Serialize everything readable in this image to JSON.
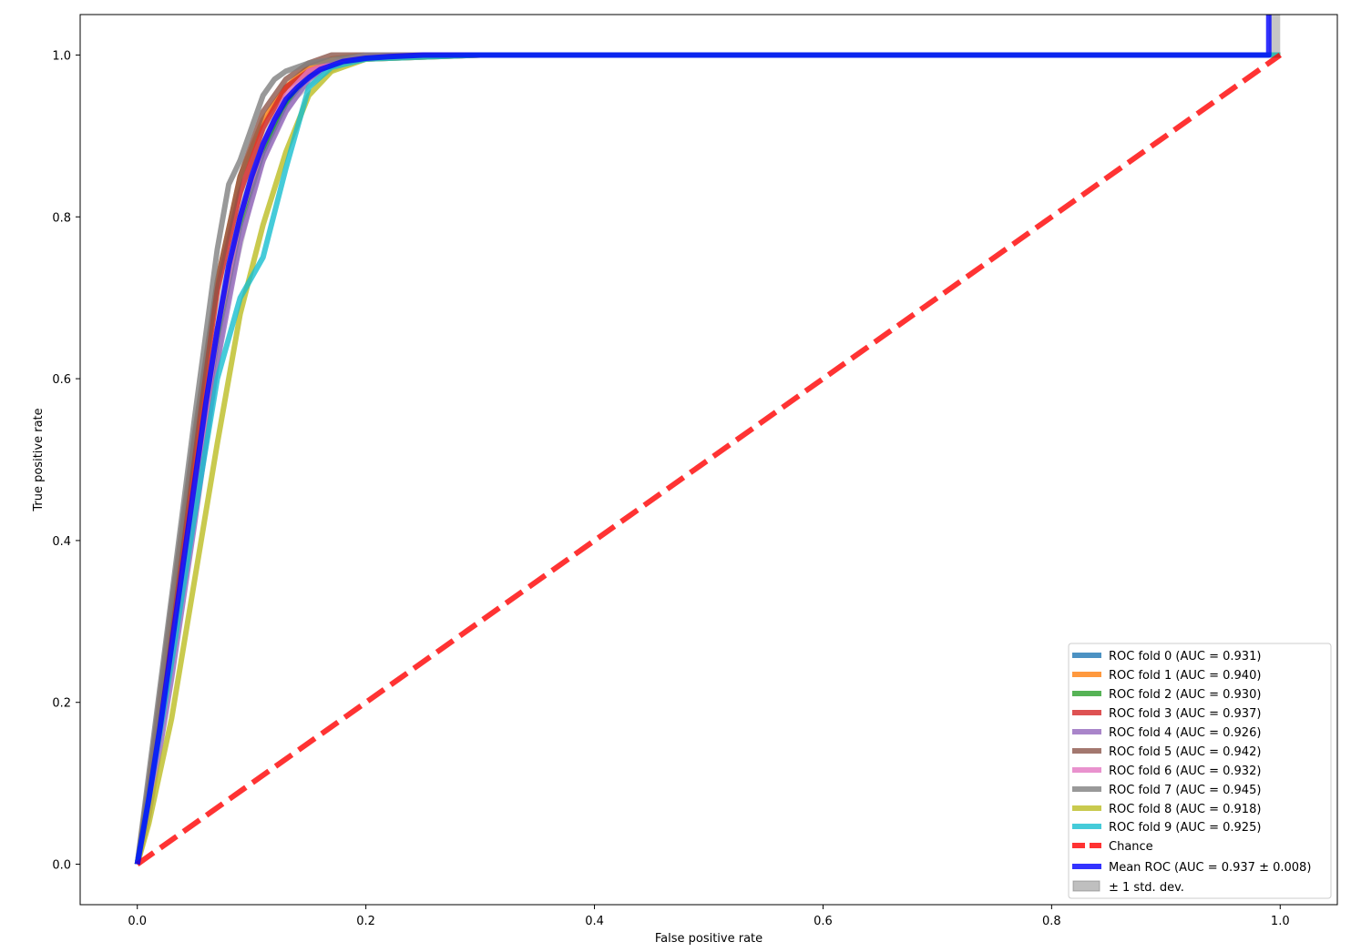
{
  "chart_data": {
    "type": "line",
    "title": "",
    "xlabel": "False positive rate",
    "ylabel": "True positive rate",
    "xlim": [
      -0.05,
      1.05
    ],
    "ylim": [
      -0.05,
      1.05
    ],
    "xticks": [
      "0.0",
      "0.2",
      "0.4",
      "0.6",
      "0.8",
      "1.0"
    ],
    "yticks": [
      "0.0",
      "0.2",
      "0.4",
      "0.6",
      "0.8",
      "1.0"
    ],
    "grid": false,
    "legend_position": "lower-right",
    "series": [
      {
        "name": "ROC fold 0 (AUC = 0.931)",
        "color": "#1f77b4",
        "style": "solid",
        "x": [
          0,
          0.01,
          0.03,
          0.05,
          0.07,
          0.09,
          0.11,
          0.13,
          0.15,
          0.17,
          0.2,
          0.3,
          1.0
        ],
        "y": [
          0,
          0.08,
          0.27,
          0.47,
          0.66,
          0.8,
          0.88,
          0.94,
          0.975,
          0.99,
          1.0,
          1.0,
          1.0
        ]
      },
      {
        "name": "ROC fold 1 (AUC = 0.940)",
        "color": "#ff7f0e",
        "style": "solid",
        "x": [
          0,
          0.01,
          0.03,
          0.05,
          0.07,
          0.09,
          0.11,
          0.13,
          0.15,
          0.17,
          0.2,
          0.3,
          1.0
        ],
        "y": [
          0,
          0.09,
          0.3,
          0.52,
          0.72,
          0.85,
          0.92,
          0.96,
          0.985,
          0.995,
          1.0,
          1.0,
          1.0
        ]
      },
      {
        "name": "ROC fold 2 (AUC = 0.930)",
        "color": "#2ca02c",
        "style": "solid",
        "x": [
          0,
          0.01,
          0.03,
          0.05,
          0.07,
          0.09,
          0.11,
          0.13,
          0.15,
          0.17,
          0.2,
          0.3,
          1.0
        ],
        "y": [
          0,
          0.07,
          0.26,
          0.46,
          0.65,
          0.79,
          0.88,
          0.94,
          0.975,
          0.99,
          1.0,
          1.0,
          1.0
        ]
      },
      {
        "name": "ROC fold 3 (AUC = 0.937)",
        "color": "#d62728",
        "style": "solid",
        "x": [
          0,
          0.01,
          0.03,
          0.05,
          0.07,
          0.09,
          0.11,
          0.13,
          0.15,
          0.17,
          0.2,
          0.3,
          1.0
        ],
        "y": [
          0,
          0.09,
          0.29,
          0.51,
          0.71,
          0.83,
          0.91,
          0.96,
          0.98,
          0.99,
          0.995,
          1.0,
          1.0
        ]
      },
      {
        "name": "ROC fold 4 (AUC = 0.926)",
        "color": "#9467bd",
        "style": "solid",
        "x": [
          0,
          0.01,
          0.03,
          0.05,
          0.07,
          0.09,
          0.11,
          0.13,
          0.15,
          0.17,
          0.2,
          0.3,
          1.0
        ],
        "y": [
          0,
          0.06,
          0.23,
          0.42,
          0.62,
          0.77,
          0.87,
          0.93,
          0.97,
          0.99,
          1.0,
          1.0,
          1.0
        ]
      },
      {
        "name": "ROC fold 5 (AUC = 0.942)",
        "color": "#8c564b",
        "style": "solid",
        "x": [
          0,
          0.01,
          0.03,
          0.05,
          0.07,
          0.09,
          0.11,
          0.13,
          0.15,
          0.17,
          0.2,
          0.3,
          1.0
        ],
        "y": [
          0,
          0.1,
          0.32,
          0.53,
          0.72,
          0.85,
          0.93,
          0.97,
          0.99,
          1.0,
          1.0,
          1.0,
          1.0
        ]
      },
      {
        "name": "ROC fold 6 (AUC = 0.932)",
        "color": "#e377c2",
        "style": "solid",
        "x": [
          0,
          0.01,
          0.03,
          0.05,
          0.07,
          0.09,
          0.11,
          0.13,
          0.15,
          0.17,
          0.2,
          0.3,
          1.0
        ],
        "y": [
          0,
          0.07,
          0.26,
          0.46,
          0.66,
          0.8,
          0.89,
          0.95,
          0.98,
          0.99,
          1.0,
          1.0,
          1.0
        ]
      },
      {
        "name": "ROC fold 7 (AUC = 0.945)",
        "color": "#7f7f7f",
        "style": "solid",
        "x": [
          0,
          0.01,
          0.03,
          0.05,
          0.07,
          0.08,
          0.09,
          0.1,
          0.11,
          0.12,
          0.13,
          0.15,
          0.2,
          0.3,
          1.0
        ],
        "y": [
          0,
          0.11,
          0.33,
          0.55,
          0.76,
          0.84,
          0.87,
          0.91,
          0.95,
          0.97,
          0.98,
          0.99,
          1.0,
          1.0,
          1.0
        ]
      },
      {
        "name": "ROC fold 8 (AUC = 0.918)",
        "color": "#bcbd22",
        "style": "solid",
        "x": [
          0,
          0.01,
          0.03,
          0.05,
          0.07,
          0.09,
          0.11,
          0.13,
          0.15,
          0.17,
          0.2,
          0.3,
          1.0
        ],
        "y": [
          0,
          0.05,
          0.18,
          0.35,
          0.52,
          0.68,
          0.79,
          0.88,
          0.95,
          0.98,
          0.995,
          1.0,
          1.0
        ]
      },
      {
        "name": "ROC fold 9 (AUC = 0.925)",
        "color": "#17becf",
        "style": "solid",
        "x": [
          0,
          0.01,
          0.03,
          0.05,
          0.07,
          0.09,
          0.11,
          0.13,
          0.15,
          0.17,
          0.2,
          0.3,
          1.0
        ],
        "y": [
          0,
          0.08,
          0.25,
          0.43,
          0.6,
          0.7,
          0.75,
          0.86,
          0.96,
          0.985,
          0.995,
          1.0,
          1.0
        ]
      },
      {
        "name": "Chance",
        "color": "#ff0000",
        "style": "dashed",
        "x": [
          0,
          1.0
        ],
        "y": [
          0,
          1.0
        ]
      },
      {
        "name": "Mean ROC (AUC = 0.937 ± 0.008)",
        "color": "#0000ff",
        "style": "solid",
        "x": [
          0,
          0.01,
          0.02,
          0.03,
          0.04,
          0.05,
          0.06,
          0.07,
          0.08,
          0.09,
          0.1,
          0.11,
          0.12,
          0.13,
          0.14,
          0.15,
          0.16,
          0.18,
          0.2,
          0.22,
          0.25,
          0.3,
          0.5,
          0.99,
          0.99
        ],
        "y": [
          0,
          0.08,
          0.17,
          0.27,
          0.37,
          0.47,
          0.57,
          0.66,
          0.74,
          0.8,
          0.85,
          0.89,
          0.92,
          0.945,
          0.96,
          0.972,
          0.982,
          0.992,
          0.996,
          0.998,
          1.0,
          1.0,
          1.0,
          1.0,
          1.06
        ]
      },
      {
        "name": "± 1 std. dev.",
        "color": "#808080",
        "style": "band",
        "x": [
          0,
          0.01,
          0.02,
          0.03,
          0.04,
          0.05,
          0.06,
          0.07,
          0.08,
          0.09,
          0.1,
          0.11,
          0.12,
          0.13,
          0.14,
          0.15,
          0.16,
          0.18,
          0.2,
          0.25,
          1.0
        ],
        "upper": [
          0.01,
          0.1,
          0.2,
          0.31,
          0.42,
          0.53,
          0.63,
          0.72,
          0.79,
          0.85,
          0.89,
          0.92,
          0.945,
          0.965,
          0.978,
          0.988,
          0.994,
          0.998,
          1.0,
          1.0,
          1.0
        ],
        "lower": [
          0,
          0.06,
          0.14,
          0.23,
          0.32,
          0.41,
          0.51,
          0.6,
          0.69,
          0.75,
          0.81,
          0.86,
          0.895,
          0.925,
          0.945,
          0.958,
          0.97,
          0.985,
          0.992,
          0.998,
          1.0
        ]
      }
    ]
  }
}
